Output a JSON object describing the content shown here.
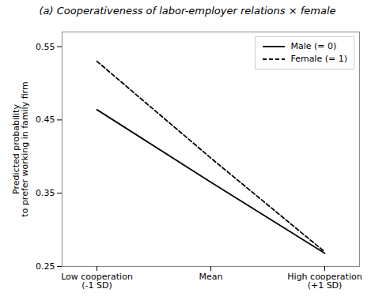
{
  "chart_data": {
    "type": "line",
    "title": "(a) Cooperativeness of labor-employer relations × female",
    "ylabel": "Predicted probability\nto prefer working in family firm",
    "categories": [
      "Low cooperation\n(-1 SD)",
      "Mean",
      "High cooperation\n(+1 SD)"
    ],
    "series": [
      {
        "name": "Male (= 0)",
        "color": "#000000",
        "line_style": "solid",
        "values": [
          0.464,
          0.365,
          0.268
        ]
      },
      {
        "name": "Female (= 1)",
        "color": "#000000",
        "line_style": "dashed",
        "values": [
          0.53,
          0.398,
          0.27
        ]
      }
    ],
    "ylim": [
      0.25,
      0.57
    ],
    "yticks": [
      0.25,
      0.35,
      0.45,
      0.55
    ],
    "grid": false,
    "legend": "upper right"
  }
}
